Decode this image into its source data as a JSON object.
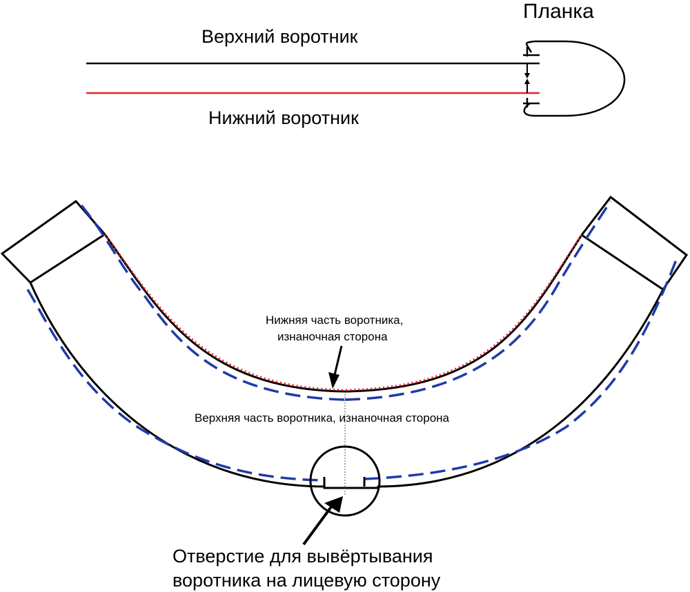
{
  "labels": {
    "planka": "Планка",
    "upper_collar": "Верхний воротник",
    "lower_collar": "Нижний воротник",
    "lower_part_line1": "Нижняя часть воротника,",
    "lower_part_line2": "изнаночная сторона",
    "upper_part": "Верхняя часть воротника, изнаночная сторона",
    "opening_line1": "Отверстие для вывёртывания",
    "opening_line2": "воротника на лицевую сторону"
  },
  "colors": {
    "outline": "#000000",
    "upper_collar_line": "#000000",
    "lower_collar_line": "#e8202a",
    "stitch_line": "#1f3aa8",
    "lower_edge_dotted": "#e8202a"
  }
}
